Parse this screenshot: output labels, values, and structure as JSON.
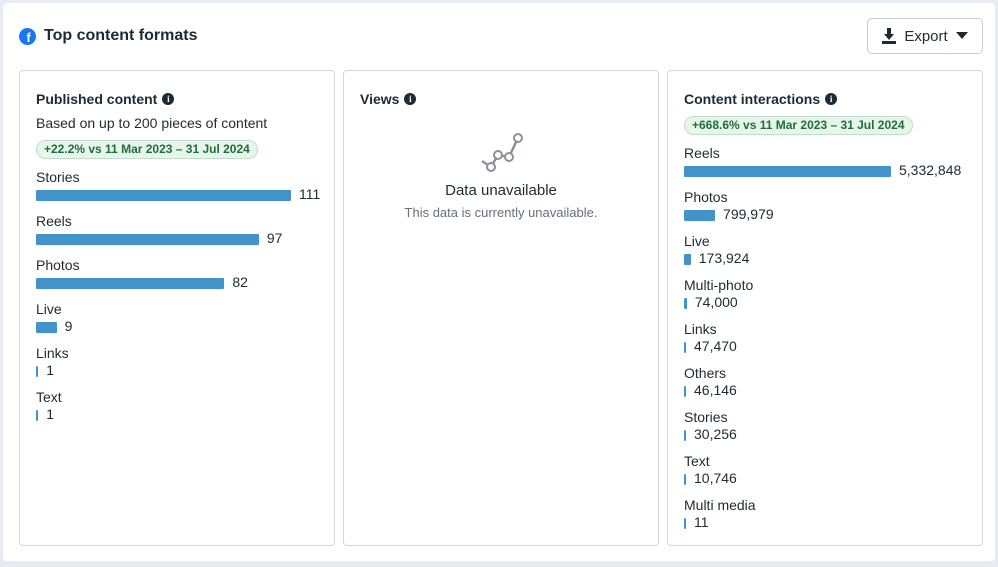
{
  "header": {
    "title": "Top content formats",
    "export_label": "Export"
  },
  "colors": {
    "bar": "#4193c9",
    "badge_bg": "#e8f5ec",
    "badge_text": "#1f6e3a",
    "brand": "#1877f2"
  },
  "published": {
    "title": "Published content",
    "subtitle": "Based on up to 200 pieces of content",
    "badge": "+22.2% vs 11 Mar 2023 – 31 Jul 2024",
    "items": [
      {
        "label": "Stories",
        "value": 111,
        "display": "111"
      },
      {
        "label": "Reels",
        "value": 97,
        "display": "97"
      },
      {
        "label": "Photos",
        "value": 82,
        "display": "82"
      },
      {
        "label": "Live",
        "value": 9,
        "display": "9"
      },
      {
        "label": "Links",
        "value": 1,
        "display": "1"
      },
      {
        "label": "Text",
        "value": 1,
        "display": "1"
      }
    ]
  },
  "views": {
    "title": "Views",
    "empty_title": "Data unavailable",
    "empty_text": "This data is currently unavailable."
  },
  "interactions": {
    "title": "Content interactions",
    "badge": "+668.6% vs 11 Mar 2023 – 31 Jul 2024",
    "items": [
      {
        "label": "Reels",
        "value": 5332848,
        "display": "5,332,848"
      },
      {
        "label": "Photos",
        "value": 799979,
        "display": "799,979"
      },
      {
        "label": "Live",
        "value": 173924,
        "display": "173,924"
      },
      {
        "label": "Multi-photo",
        "value": 74000,
        "display": "74,000"
      },
      {
        "label": "Links",
        "value": 47470,
        "display": "47,470"
      },
      {
        "label": "Others",
        "value": 46146,
        "display": "46,146"
      },
      {
        "label": "Stories",
        "value": 30256,
        "display": "30,256"
      },
      {
        "label": "Text",
        "value": 10746,
        "display": "10,746"
      },
      {
        "label": "Multi media",
        "value": 11,
        "display": "11"
      }
    ]
  }
}
